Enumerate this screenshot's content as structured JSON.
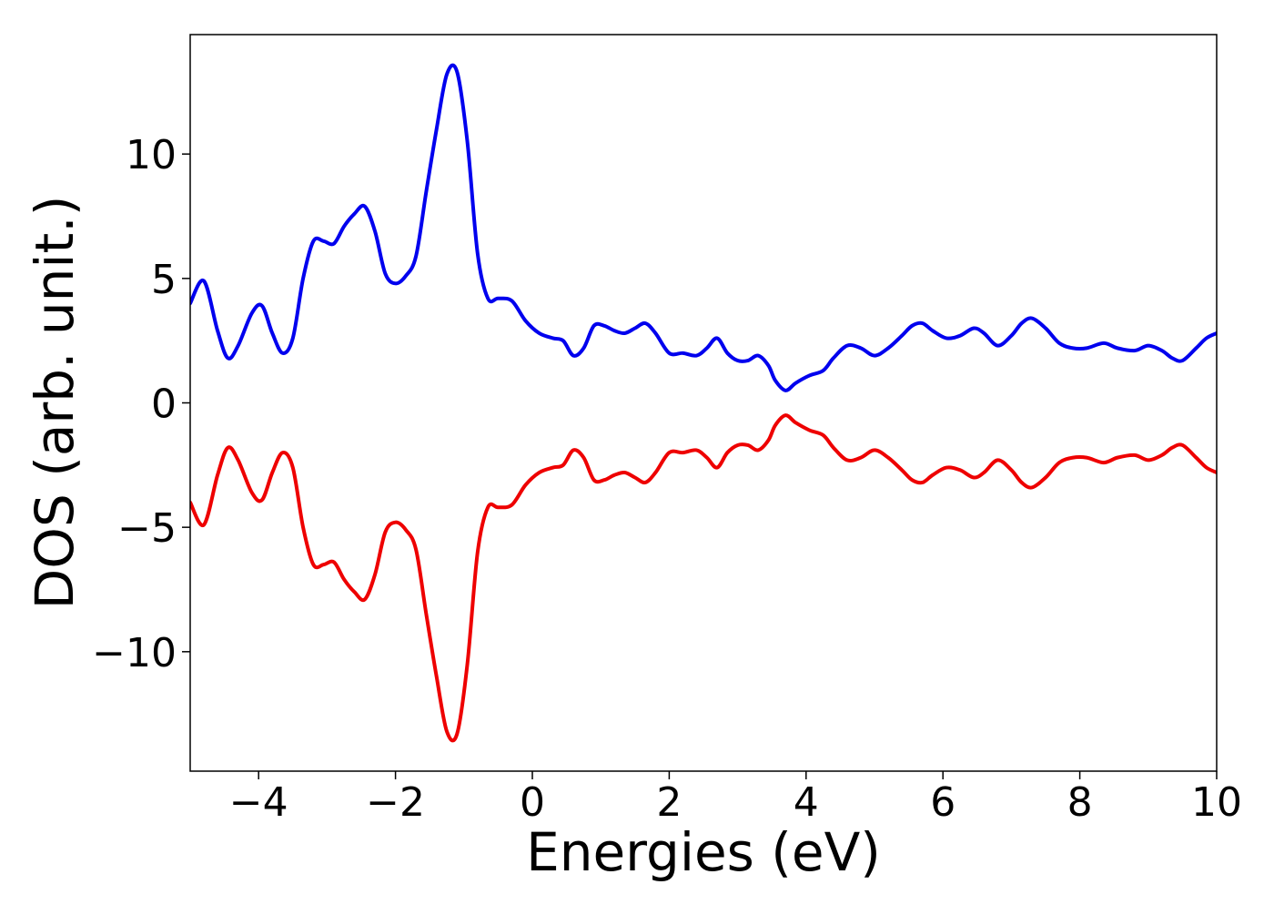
{
  "chart_data": {
    "type": "line",
    "xlabel": "Energies (eV)",
    "ylabel": "DOS (arb. unit.)",
    "xlim": [
      -5,
      10
    ],
    "ylim": [
      -14.8,
      14.8
    ],
    "xticks": [
      -4,
      -2,
      0,
      2,
      4,
      6,
      8,
      10
    ],
    "yticks": [
      -10,
      -5,
      0,
      5,
      10
    ],
    "xtick_labels": [
      "−4",
      "−2",
      "0",
      "2",
      "4",
      "6",
      "8",
      "10"
    ],
    "ytick_labels": [
      "−10",
      "−5",
      "0",
      "5",
      "10"
    ],
    "grid": false,
    "series": [
      {
        "color": "#0000ee",
        "points": [
          [
            -5.0,
            4.0
          ],
          [
            -4.8,
            4.9
          ],
          [
            -4.6,
            2.9
          ],
          [
            -4.45,
            1.8
          ],
          [
            -4.3,
            2.3
          ],
          [
            -4.1,
            3.6
          ],
          [
            -3.95,
            3.9
          ],
          [
            -3.8,
            2.8
          ],
          [
            -3.65,
            2.0
          ],
          [
            -3.5,
            2.6
          ],
          [
            -3.35,
            5.0
          ],
          [
            -3.2,
            6.5
          ],
          [
            -3.05,
            6.5
          ],
          [
            -2.9,
            6.4
          ],
          [
            -2.75,
            7.1
          ],
          [
            -2.6,
            7.6
          ],
          [
            -2.45,
            7.9
          ],
          [
            -2.3,
            6.9
          ],
          [
            -2.15,
            5.2
          ],
          [
            -2.0,
            4.8
          ],
          [
            -1.85,
            5.1
          ],
          [
            -1.7,
            5.9
          ],
          [
            -1.55,
            8.5
          ],
          [
            -1.4,
            11.0
          ],
          [
            -1.25,
            13.2
          ],
          [
            -1.1,
            13.3
          ],
          [
            -0.95,
            10.5
          ],
          [
            -0.8,
            6.0
          ],
          [
            -0.65,
            4.2
          ],
          [
            -0.5,
            4.2
          ],
          [
            -0.3,
            4.1
          ],
          [
            -0.1,
            3.3
          ],
          [
            0.1,
            2.8
          ],
          [
            0.3,
            2.6
          ],
          [
            0.45,
            2.5
          ],
          [
            0.6,
            1.9
          ],
          [
            0.75,
            2.2
          ],
          [
            0.9,
            3.1
          ],
          [
            1.05,
            3.1
          ],
          [
            1.2,
            2.9
          ],
          [
            1.35,
            2.8
          ],
          [
            1.5,
            3.0
          ],
          [
            1.65,
            3.2
          ],
          [
            1.8,
            2.8
          ],
          [
            2.0,
            2.0
          ],
          [
            2.2,
            2.0
          ],
          [
            2.4,
            1.9
          ],
          [
            2.55,
            2.2
          ],
          [
            2.7,
            2.6
          ],
          [
            2.85,
            2.0
          ],
          [
            3.0,
            1.7
          ],
          [
            3.15,
            1.7
          ],
          [
            3.3,
            1.9
          ],
          [
            3.45,
            1.5
          ],
          [
            3.55,
            0.9
          ],
          [
            3.7,
            0.5
          ],
          [
            3.85,
            0.8
          ],
          [
            4.05,
            1.1
          ],
          [
            4.25,
            1.3
          ],
          [
            4.4,
            1.8
          ],
          [
            4.6,
            2.3
          ],
          [
            4.8,
            2.2
          ],
          [
            5.0,
            1.9
          ],
          [
            5.2,
            2.2
          ],
          [
            5.4,
            2.7
          ],
          [
            5.55,
            3.1
          ],
          [
            5.7,
            3.2
          ],
          [
            5.85,
            2.9
          ],
          [
            6.05,
            2.6
          ],
          [
            6.25,
            2.7
          ],
          [
            6.45,
            3.0
          ],
          [
            6.6,
            2.8
          ],
          [
            6.8,
            2.3
          ],
          [
            7.0,
            2.7
          ],
          [
            7.15,
            3.2
          ],
          [
            7.3,
            3.4
          ],
          [
            7.5,
            3.0
          ],
          [
            7.7,
            2.4
          ],
          [
            7.9,
            2.2
          ],
          [
            8.1,
            2.2
          ],
          [
            8.35,
            2.4
          ],
          [
            8.55,
            2.2
          ],
          [
            8.8,
            2.1
          ],
          [
            9.0,
            2.3
          ],
          [
            9.2,
            2.1
          ],
          [
            9.35,
            1.8
          ],
          [
            9.5,
            1.7
          ],
          [
            9.7,
            2.2
          ],
          [
            9.85,
            2.6
          ],
          [
            10.0,
            2.8
          ]
        ]
      },
      {
        "color": "#ee0000",
        "points": [
          [
            -5.0,
            -4.0
          ],
          [
            -4.8,
            -4.9
          ],
          [
            -4.6,
            -2.9
          ],
          [
            -4.45,
            -1.8
          ],
          [
            -4.3,
            -2.3
          ],
          [
            -4.1,
            -3.6
          ],
          [
            -3.95,
            -3.9
          ],
          [
            -3.8,
            -2.8
          ],
          [
            -3.65,
            -2.0
          ],
          [
            -3.5,
            -2.6
          ],
          [
            -3.35,
            -5.0
          ],
          [
            -3.2,
            -6.5
          ],
          [
            -3.05,
            -6.5
          ],
          [
            -2.9,
            -6.4
          ],
          [
            -2.75,
            -7.1
          ],
          [
            -2.6,
            -7.6
          ],
          [
            -2.45,
            -7.9
          ],
          [
            -2.3,
            -6.9
          ],
          [
            -2.15,
            -5.2
          ],
          [
            -2.0,
            -4.8
          ],
          [
            -1.85,
            -5.1
          ],
          [
            -1.7,
            -5.9
          ],
          [
            -1.55,
            -8.5
          ],
          [
            -1.4,
            -11.0
          ],
          [
            -1.25,
            -13.2
          ],
          [
            -1.1,
            -13.3
          ],
          [
            -0.95,
            -10.5
          ],
          [
            -0.8,
            -6.0
          ],
          [
            -0.65,
            -4.2
          ],
          [
            -0.5,
            -4.2
          ],
          [
            -0.3,
            -4.1
          ],
          [
            -0.1,
            -3.3
          ],
          [
            0.1,
            -2.8
          ],
          [
            0.3,
            -2.6
          ],
          [
            0.45,
            -2.5
          ],
          [
            0.6,
            -1.9
          ],
          [
            0.75,
            -2.2
          ],
          [
            0.9,
            -3.1
          ],
          [
            1.05,
            -3.1
          ],
          [
            1.2,
            -2.9
          ],
          [
            1.35,
            -2.8
          ],
          [
            1.5,
            -3.0
          ],
          [
            1.65,
            -3.2
          ],
          [
            1.8,
            -2.8
          ],
          [
            2.0,
            -2.0
          ],
          [
            2.2,
            -2.0
          ],
          [
            2.4,
            -1.9
          ],
          [
            2.55,
            -2.2
          ],
          [
            2.7,
            -2.6
          ],
          [
            2.85,
            -2.0
          ],
          [
            3.0,
            -1.7
          ],
          [
            3.15,
            -1.7
          ],
          [
            3.3,
            -1.9
          ],
          [
            3.45,
            -1.5
          ],
          [
            3.55,
            -0.9
          ],
          [
            3.7,
            -0.5
          ],
          [
            3.85,
            -0.8
          ],
          [
            4.05,
            -1.1
          ],
          [
            4.25,
            -1.3
          ],
          [
            4.4,
            -1.8
          ],
          [
            4.6,
            -2.3
          ],
          [
            4.8,
            -2.2
          ],
          [
            5.0,
            -1.9
          ],
          [
            5.2,
            -2.2
          ],
          [
            5.4,
            -2.7
          ],
          [
            5.55,
            -3.1
          ],
          [
            5.7,
            -3.2
          ],
          [
            5.85,
            -2.9
          ],
          [
            6.05,
            -2.6
          ],
          [
            6.25,
            -2.7
          ],
          [
            6.45,
            -3.0
          ],
          [
            6.6,
            -2.8
          ],
          [
            6.8,
            -2.3
          ],
          [
            7.0,
            -2.7
          ],
          [
            7.15,
            -3.2
          ],
          [
            7.3,
            -3.4
          ],
          [
            7.5,
            -3.0
          ],
          [
            7.7,
            -2.4
          ],
          [
            7.9,
            -2.2
          ],
          [
            8.1,
            -2.2
          ],
          [
            8.35,
            -2.4
          ],
          [
            8.55,
            -2.2
          ],
          [
            8.8,
            -2.1
          ],
          [
            9.0,
            -2.3
          ],
          [
            9.2,
            -2.1
          ],
          [
            9.35,
            -1.8
          ],
          [
            9.5,
            -1.7
          ],
          [
            9.7,
            -2.2
          ],
          [
            9.85,
            -2.6
          ],
          [
            10.0,
            -2.8
          ]
        ]
      }
    ]
  }
}
